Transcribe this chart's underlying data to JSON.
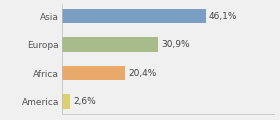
{
  "categories": [
    "Asia",
    "Europa",
    "Africa",
    "America"
  ],
  "values": [
    46.1,
    30.9,
    20.4,
    2.6
  ],
  "labels": [
    "46,1%",
    "30,9%",
    "20,4%",
    "2,6%"
  ],
  "bar_colors": [
    "#7b9ec4",
    "#a8bb8a",
    "#e8a96a",
    "#ddd070"
  ],
  "background_color": "#f0f0f0",
  "xlim": [
    0,
    68
  ],
  "label_fontsize": 6.5,
  "tick_fontsize": 6.5,
  "bar_height": 0.52
}
